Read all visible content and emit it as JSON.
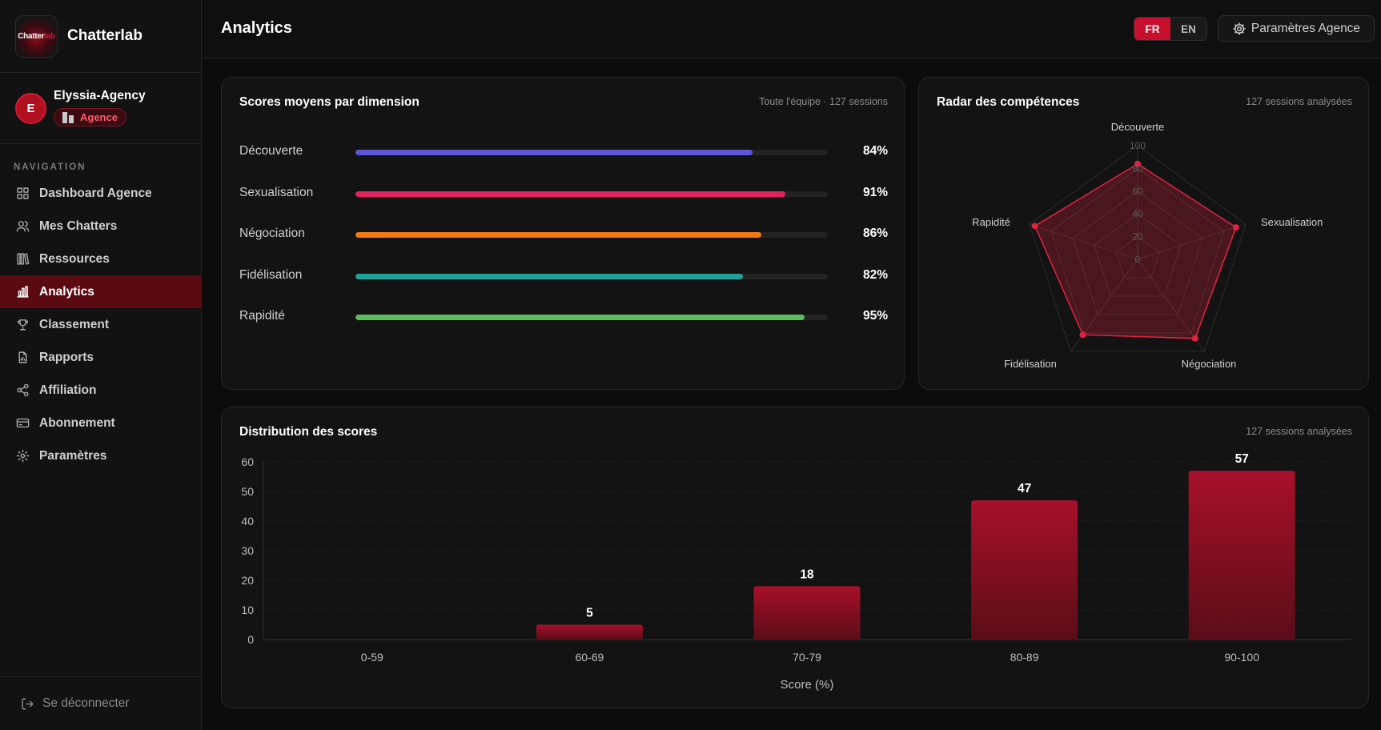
{
  "app": {
    "brand": "Chatterlab",
    "logo_text_a": "Chatter",
    "logo_text_b": "lab"
  },
  "account": {
    "initial": "E",
    "name": "Elyssia-Agency",
    "badge": "Agence"
  },
  "nav": {
    "section_title": "NAVIGATION",
    "items": [
      {
        "label": "Dashboard Agence",
        "icon": "grid-icon"
      },
      {
        "label": "Mes Chatters",
        "icon": "users-icon"
      },
      {
        "label": "Ressources",
        "icon": "library-icon"
      },
      {
        "label": "Analytics",
        "icon": "bar-chart-icon",
        "active": true
      },
      {
        "label": "Classement",
        "icon": "trophy-icon"
      },
      {
        "label": "Rapports",
        "icon": "file-icon"
      },
      {
        "label": "Affiliation",
        "icon": "share-icon"
      },
      {
        "label": "Abonnement",
        "icon": "card-icon"
      },
      {
        "label": "Paramètres",
        "icon": "gear-icon"
      }
    ],
    "logout": "Se déconnecter"
  },
  "header": {
    "title": "Analytics",
    "lang_fr": "FR",
    "lang_en": "EN",
    "settings": "Paramètres Agence"
  },
  "scores_card": {
    "title": "Scores moyens par dimension",
    "subtitle": "Toute l'équipe · 127 sessions",
    "dimensions": [
      {
        "label": "Découverte",
        "value": 84,
        "display": "84%",
        "color": "#5b57d6"
      },
      {
        "label": "Sexualisation",
        "value": 91,
        "display": "91%",
        "color": "#e0245e"
      },
      {
        "label": "Négociation",
        "value": 86,
        "display": "86%",
        "color": "#f07a12"
      },
      {
        "label": "Fidélisation",
        "value": 82,
        "display": "82%",
        "color": "#1ba39c"
      },
      {
        "label": "Rapidité",
        "value": 95,
        "display": "95%",
        "color": "#5cbd5c"
      }
    ]
  },
  "radar_card": {
    "title": "Radar des compétences",
    "subtitle": "127 sessions analysées",
    "scale_labels": [
      "100",
      "80",
      "60",
      "40",
      "20",
      "0"
    ]
  },
  "dist_card": {
    "title": "Distribution des scores",
    "subtitle": "127 sessions analysées"
  },
  "chart_data": [
    {
      "type": "bar",
      "orientation": "horizontal",
      "categories": [
        "Découverte",
        "Sexualisation",
        "Négociation",
        "Fidélisation",
        "Rapidité"
      ],
      "values": [
        84,
        91,
        86,
        82,
        95
      ],
      "ylim": [
        0,
        100
      ]
    },
    {
      "type": "radar",
      "categories": [
        "Découverte",
        "Sexualisation",
        "Négociation",
        "Fidélisation",
        "Rapidité"
      ],
      "values": [
        84,
        91,
        86,
        82,
        95
      ],
      "ylim": [
        0,
        100
      ],
      "ticks": [
        0,
        20,
        40,
        60,
        80,
        100
      ],
      "color": "#e0243f"
    },
    {
      "type": "bar",
      "categories": [
        "0-59",
        "60-69",
        "70-79",
        "80-89",
        "90-100"
      ],
      "values": [
        0,
        5,
        18,
        47,
        57
      ],
      "data_labels": [
        "",
        "5",
        "18",
        "47",
        "57"
      ],
      "xlabel": "Score (%)",
      "ylabel": "",
      "ylim": [
        0,
        60
      ],
      "yticks": [
        0,
        10,
        20,
        30,
        40,
        50,
        60
      ],
      "grid": true,
      "color": "#a6102a"
    }
  ]
}
